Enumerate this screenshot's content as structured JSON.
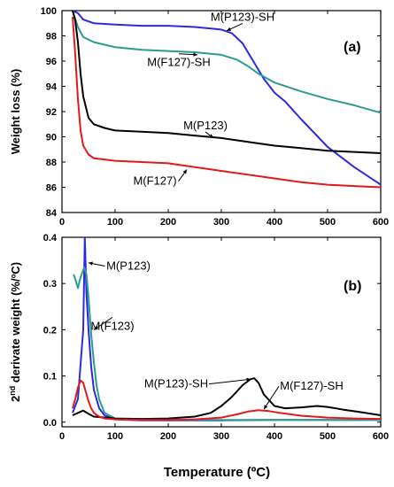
{
  "figure": {
    "xlabel": "Temperature (ºC)"
  },
  "chart_data": [
    {
      "type": "line",
      "panel_label": "(a)",
      "xlabel": "",
      "ylabel": "Weight loss (%)",
      "xlim": [
        0,
        600
      ],
      "ylim": [
        84,
        100
      ],
      "xticks": [
        0,
        100,
        200,
        300,
        400,
        500,
        600
      ],
      "yticks": [
        84,
        86,
        88,
        90,
        92,
        94,
        96,
        98,
        100
      ],
      "grid": false,
      "series": [
        {
          "name": "M(P123)-SH",
          "color": "#2b2bdc",
          "x": [
            20,
            30,
            40,
            60,
            100,
            150,
            200,
            250,
            300,
            320,
            340,
            360,
            380,
            400,
            420,
            450,
            500,
            550,
            600
          ],
          "y": [
            100,
            99.8,
            99.3,
            99.0,
            98.9,
            98.8,
            98.8,
            98.7,
            98.5,
            98.2,
            97.4,
            96.0,
            94.6,
            93.5,
            92.8,
            91.4,
            89.2,
            87.6,
            86.2
          ]
        },
        {
          "name": "M(F127)-SH",
          "color": "#2a9d8f",
          "x": [
            20,
            30,
            40,
            60,
            100,
            150,
            200,
            250,
            300,
            330,
            350,
            370,
            400,
            450,
            500,
            550,
            600
          ],
          "y": [
            100,
            98.7,
            97.9,
            97.5,
            97.1,
            96.9,
            96.8,
            96.7,
            96.5,
            96.1,
            95.6,
            95.0,
            94.3,
            93.6,
            93.0,
            92.5,
            91.9
          ]
        },
        {
          "name": "M(P123)",
          "color": "#000000",
          "x": [
            20,
            25,
            30,
            35,
            40,
            50,
            60,
            80,
            100,
            150,
            200,
            250,
            300,
            350,
            400,
            450,
            500,
            550,
            600
          ],
          "y": [
            100,
            99.2,
            97.5,
            95.0,
            93.2,
            91.5,
            91.0,
            90.7,
            90.5,
            90.4,
            90.3,
            90.1,
            89.9,
            89.6,
            89.3,
            89.1,
            88.9,
            88.8,
            88.7
          ]
        },
        {
          "name": "M(F127)",
          "color": "#e31a1c",
          "x": [
            20,
            25,
            30,
            35,
            40,
            50,
            60,
            80,
            100,
            150,
            200,
            250,
            300,
            350,
            400,
            450,
            500,
            550,
            600
          ],
          "y": [
            99.5,
            96.5,
            93.0,
            90.5,
            89.3,
            88.6,
            88.3,
            88.2,
            88.1,
            88.0,
            87.9,
            87.6,
            87.3,
            87.0,
            86.7,
            86.4,
            86.2,
            86.1,
            86.0
          ]
        }
      ],
      "annotations": [
        {
          "text": "M(P123)-SH",
          "x": 340,
          "y": 99.2,
          "points_to": [
            310,
            98.4
          ]
        },
        {
          "text": "M(F127)-SH",
          "x": 220,
          "y": 95.6,
          "points_to": [
            255,
            96.5
          ]
        },
        {
          "text": "M(P123)",
          "x": 270,
          "y": 90.6,
          "points_to": [
            285,
            89.9
          ]
        },
        {
          "text": "M(F127)",
          "x": 175,
          "y": 86.2,
          "points_to": [
            235,
            87.4
          ]
        }
      ]
    },
    {
      "type": "line",
      "panel_label": "(b)",
      "xlabel": "Temperature (ºC)",
      "ylabel_parts": [
        "2",
        "nd",
        " derivate weight (%/ºC)"
      ],
      "xlim": [
        0,
        600
      ],
      "ylim": [
        -0.01,
        0.4
      ],
      "xticks": [
        0,
        100,
        200,
        300,
        400,
        500,
        600
      ],
      "yticks": [
        0.0,
        0.1,
        0.2,
        0.3,
        0.4
      ],
      "ytick_labels": [
        "0.0",
        "0.1",
        "0.2",
        "0.3",
        "0.4"
      ],
      "grid": false,
      "series": [
        {
          "name": "M(P123)",
          "color": "#2b2bdc",
          "x": [
            20,
            30,
            40,
            43,
            46,
            50,
            55,
            60,
            70,
            80,
            100,
            150,
            200,
            300,
            400,
            500,
            600
          ],
          "y": [
            0.02,
            0.05,
            0.2,
            0.4,
            0.28,
            0.2,
            0.12,
            0.07,
            0.03,
            0.015,
            0.006,
            0.004,
            0.004,
            0.004,
            0.005,
            0.005,
            0.005
          ]
        },
        {
          "name": "M(F123)",
          "color": "#2a9d8f",
          "x": [
            22,
            25,
            30,
            33,
            37,
            42,
            46,
            50,
            55,
            60,
            65,
            70,
            80,
            100,
            150,
            200,
            300,
            400,
            500,
            600
          ],
          "y": [
            0.32,
            0.31,
            0.29,
            0.305,
            0.32,
            0.335,
            0.32,
            0.27,
            0.19,
            0.13,
            0.08,
            0.05,
            0.02,
            0.008,
            0.005,
            0.005,
            0.005,
            0.005,
            0.005,
            0.005
          ]
        },
        {
          "name": "M(P123)-SH",
          "color": "#000000",
          "x": [
            20,
            30,
            40,
            50,
            60,
            100,
            150,
            200,
            250,
            280,
            300,
            320,
            340,
            355,
            362,
            370,
            380,
            400,
            420,
            450,
            480,
            500,
            530,
            560,
            600
          ],
          "y": [
            0.015,
            0.02,
            0.025,
            0.018,
            0.012,
            0.008,
            0.007,
            0.008,
            0.012,
            0.02,
            0.035,
            0.055,
            0.08,
            0.093,
            0.095,
            0.085,
            0.06,
            0.035,
            0.03,
            0.032,
            0.035,
            0.033,
            0.027,
            0.022,
            0.015
          ]
        },
        {
          "name": "M(F127)-SH",
          "color": "#e31a1c",
          "x": [
            20,
            25,
            30,
            35,
            40,
            45,
            50,
            55,
            60,
            70,
            80,
            100,
            150,
            200,
            250,
            300,
            330,
            350,
            370,
            390,
            410,
            450,
            500,
            550,
            600
          ],
          "y": [
            0.03,
            0.05,
            0.075,
            0.09,
            0.085,
            0.065,
            0.045,
            0.03,
            0.02,
            0.012,
            0.008,
            0.006,
            0.005,
            0.005,
            0.006,
            0.01,
            0.017,
            0.023,
            0.026,
            0.024,
            0.02,
            0.014,
            0.01,
            0.008,
            0.007
          ]
        }
      ],
      "annotations": [
        {
          "text": "M(P123)",
          "x": 125,
          "y": 0.33,
          "points_to": [
            50,
            0.345
          ]
        },
        {
          "text": "M(F123)",
          "x": 95,
          "y": 0.2,
          "points_to": [
            60,
            0.2
          ]
        },
        {
          "text": "M(P123)-SH",
          "x": 215,
          "y": 0.075,
          "points_to": [
            355,
            0.093
          ]
        },
        {
          "text": "M(F127)-SH",
          "x": 470,
          "y": 0.07,
          "points_to": [
            380,
            0.028
          ]
        }
      ]
    }
  ]
}
